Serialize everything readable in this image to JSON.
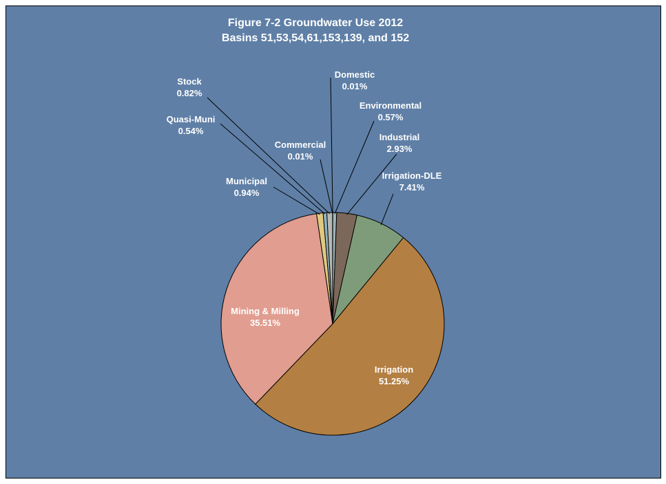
{
  "chart_data": {
    "type": "pie",
    "title": "Figure 7-2 Groundwater Use 2012",
    "subtitle": "Basins 51,53,54,61,153,139, and 152",
    "slices": [
      {
        "label": "Domestic",
        "value": 0.01,
        "value_label": "0.01%",
        "color": "#c6d8e0"
      },
      {
        "label": "Environmental",
        "value": 0.57,
        "value_label": "0.57%",
        "color": "#9bb3b8"
      },
      {
        "label": "Industrial",
        "value": 2.93,
        "value_label": "2.93%",
        "color": "#7b685a"
      },
      {
        "label": "Irrigation-DLE",
        "value": 7.41,
        "value_label": "7.41%",
        "color": "#7f9c7a"
      },
      {
        "label": "Irrigation",
        "value": 51.25,
        "value_label": "51.25%",
        "color": "#b47f42"
      },
      {
        "label": "Mining & Milling",
        "value": 35.51,
        "value_label": "35.51%",
        "color": "#e09d90"
      },
      {
        "label": "Municipal",
        "value": 0.94,
        "value_label": "0.94%",
        "color": "#e0c97e"
      },
      {
        "label": "Quasi-Muni",
        "value": 0.54,
        "value_label": "0.54%",
        "color": "#8fb3c0"
      },
      {
        "label": "Stock",
        "value": 0.82,
        "value_label": "0.82%",
        "color": "#b9b9b4"
      },
      {
        "label": "Commercial",
        "value": 0.01,
        "value_label": "0.01%",
        "color": "#a9a9a9"
      }
    ],
    "start_angle_deg": 0,
    "direction": "clockwise",
    "legend": "none",
    "background_color": "#5f7fa6"
  }
}
